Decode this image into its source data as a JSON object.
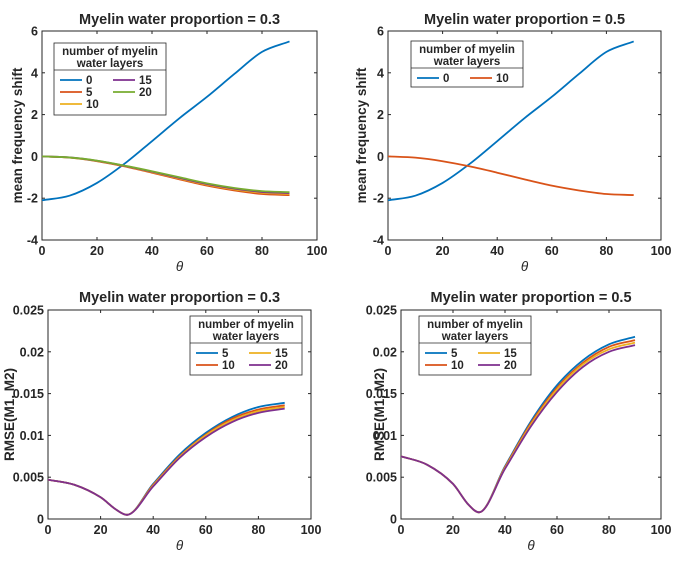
{
  "chart_data": [
    {
      "type": "line",
      "title": "Myelin water proportion = 0.3",
      "xlabel": "θ",
      "ylabel": "mean frequency shift",
      "xlim": [
        0,
        100
      ],
      "ylim": [
        -4,
        6
      ],
      "xticks": [
        "0",
        "20",
        "40",
        "60",
        "80",
        "100"
      ],
      "yticks": [
        "-4",
        "-2",
        "0",
        "2",
        "4",
        "6"
      ],
      "grid": false,
      "legend": {
        "title_lines": [
          "number of myelin",
          "water layers"
        ],
        "placement": "top-left",
        "columns": 2
      },
      "series": [
        {
          "name": "0",
          "color": "#0072BD",
          "x": [
            0,
            10,
            20,
            30,
            40,
            50,
            60,
            70,
            80,
            90
          ],
          "y": [
            -2.1,
            -1.88,
            -1.27,
            -0.35,
            0.73,
            1.83,
            2.85,
            3.95,
            5.0,
            5.5
          ]
        },
        {
          "name": "5",
          "color": "#D95319",
          "x": [
            0,
            10,
            20,
            30,
            40,
            50,
            60,
            70,
            80,
            90
          ],
          "y": [
            0,
            -0.06,
            -0.23,
            -0.48,
            -0.78,
            -1.1,
            -1.4,
            -1.63,
            -1.8,
            -1.85
          ]
        },
        {
          "name": "10",
          "color": "#EDB120",
          "x": [
            0,
            10,
            20,
            30,
            40,
            50,
            60,
            70,
            80,
            90
          ],
          "y": [
            0,
            -0.06,
            -0.22,
            -0.46,
            -0.75,
            -1.06,
            -1.35,
            -1.58,
            -1.74,
            -1.79
          ]
        },
        {
          "name": "15",
          "color": "#7E2F8E",
          "x": [
            0,
            10,
            20,
            30,
            40,
            50,
            60,
            70,
            80,
            90
          ],
          "y": [
            0,
            -0.05,
            -0.21,
            -0.45,
            -0.73,
            -1.03,
            -1.32,
            -1.54,
            -1.7,
            -1.75
          ]
        },
        {
          "name": "20",
          "color": "#77AC30",
          "x": [
            0,
            10,
            20,
            30,
            40,
            50,
            60,
            70,
            80,
            90
          ],
          "y": [
            0,
            -0.05,
            -0.2,
            -0.44,
            -0.71,
            -1.0,
            -1.29,
            -1.51,
            -1.66,
            -1.71
          ]
        }
      ]
    },
    {
      "type": "line",
      "title": "Myelin water proportion = 0.5",
      "xlabel": "θ",
      "ylabel": "mean frequency shift",
      "xlim": [
        0,
        100
      ],
      "ylim": [
        -4,
        6
      ],
      "xticks": [
        "0",
        "20",
        "40",
        "60",
        "80",
        "100"
      ],
      "yticks": [
        "-4",
        "-2",
        "0",
        "2",
        "4",
        "6"
      ],
      "grid": false,
      "legend": {
        "title_lines": [
          "number of myelin",
          "water layers"
        ],
        "placement": "top-left",
        "columns": 2
      },
      "series": [
        {
          "name": "0",
          "color": "#0072BD",
          "x": [
            0,
            10,
            20,
            30,
            40,
            50,
            60,
            70,
            80,
            90
          ],
          "y": [
            -2.1,
            -1.88,
            -1.27,
            -0.35,
            0.73,
            1.83,
            2.85,
            3.95,
            5.0,
            5.5
          ]
        },
        {
          "name": "10",
          "color": "#D95319",
          "x": [
            0,
            10,
            20,
            30,
            40,
            50,
            60,
            70,
            80,
            90
          ],
          "y": [
            0,
            -0.06,
            -0.23,
            -0.48,
            -0.78,
            -1.1,
            -1.4,
            -1.63,
            -1.8,
            -1.85
          ]
        }
      ]
    },
    {
      "type": "line",
      "title": "Myelin water proportion = 0.3",
      "xlabel": "θ",
      "ylabel": "RMSE(M1, M2)",
      "xlim": [
        0,
        100
      ],
      "ylim": [
        0,
        0.025
      ],
      "xticks": [
        "0",
        "20",
        "40",
        "60",
        "80",
        "100"
      ],
      "yticks": [
        "0",
        "0.005",
        "0.01",
        "0.015",
        "0.02",
        "0.025"
      ],
      "grid": false,
      "legend": {
        "title_lines": [
          "number of myelin",
          "water layers"
        ],
        "placement": "top-right",
        "columns": 2
      },
      "series": [
        {
          "name": "5",
          "color": "#0072BD",
          "x": [
            0,
            10,
            20,
            26,
            30,
            40,
            50,
            60,
            70,
            80,
            90
          ],
          "y": [
            0.0047,
            0.0041,
            0.0026,
            0.0011,
            0.0005,
            0.0042,
            0.0077,
            0.0103,
            0.0122,
            0.0134,
            0.0139
          ]
        },
        {
          "name": "10",
          "color": "#D95319",
          "x": [
            0,
            10,
            20,
            26,
            30,
            40,
            50,
            60,
            70,
            80,
            90
          ],
          "y": [
            0.0047,
            0.0041,
            0.0026,
            0.0011,
            0.0005,
            0.0041,
            0.0075,
            0.0101,
            0.012,
            0.0131,
            0.0136
          ]
        },
        {
          "name": "15",
          "color": "#EDB120",
          "x": [
            0,
            10,
            20,
            26,
            30,
            40,
            50,
            60,
            70,
            80,
            90
          ],
          "y": [
            0.0047,
            0.0041,
            0.0026,
            0.0011,
            0.0005,
            0.004,
            0.0074,
            0.01,
            0.0118,
            0.0129,
            0.0134
          ]
        },
        {
          "name": "20",
          "color": "#7E2F8E",
          "x": [
            0,
            10,
            20,
            26,
            30,
            40,
            50,
            60,
            70,
            80,
            90
          ],
          "y": [
            0.0047,
            0.0041,
            0.0026,
            0.0011,
            0.0005,
            0.0039,
            0.0073,
            0.0098,
            0.0116,
            0.0127,
            0.0132
          ]
        }
      ]
    },
    {
      "type": "line",
      "title": "Myelin water proportion = 0.5",
      "xlabel": "θ",
      "ylabel": "RMSE(M1, M2)",
      "xlim": [
        0,
        100
      ],
      "ylim": [
        0,
        0.025
      ],
      "xticks": [
        "0",
        "20",
        "40",
        "60",
        "80",
        "100"
      ],
      "yticks": [
        "0",
        "0.005",
        "0.01",
        "0.015",
        "0.02",
        "0.025"
      ],
      "grid": false,
      "legend": {
        "title_lines": [
          "number of myelin",
          "water layers"
        ],
        "placement": "top-left",
        "columns": 2
      },
      "series": [
        {
          "name": "5",
          "color": "#0072BD",
          "x": [
            0,
            10,
            20,
            26,
            30,
            40,
            50,
            60,
            70,
            80,
            90
          ],
          "y": [
            0.0075,
            0.0065,
            0.0042,
            0.0017,
            0.0008,
            0.0063,
            0.0117,
            0.016,
            0.019,
            0.0209,
            0.0218
          ]
        },
        {
          "name": "10",
          "color": "#D95319",
          "x": [
            0,
            10,
            20,
            26,
            30,
            40,
            50,
            60,
            70,
            80,
            90
          ],
          "y": [
            0.0075,
            0.0065,
            0.0042,
            0.0017,
            0.0008,
            0.0062,
            0.0115,
            0.0157,
            0.0187,
            0.0206,
            0.0214
          ]
        },
        {
          "name": "15",
          "color": "#EDB120",
          "x": [
            0,
            10,
            20,
            26,
            30,
            40,
            50,
            60,
            70,
            80,
            90
          ],
          "y": [
            0.0075,
            0.0065,
            0.0042,
            0.0017,
            0.0008,
            0.0061,
            0.0113,
            0.0155,
            0.0185,
            0.0203,
            0.0211
          ]
        },
        {
          "name": "20",
          "color": "#7E2F8E",
          "x": [
            0,
            10,
            20,
            26,
            30,
            40,
            50,
            60,
            70,
            80,
            90
          ],
          "y": [
            0.0075,
            0.0065,
            0.0042,
            0.0017,
            0.0008,
            0.006,
            0.0111,
            0.0152,
            0.0182,
            0.02,
            0.0208
          ]
        }
      ]
    }
  ]
}
